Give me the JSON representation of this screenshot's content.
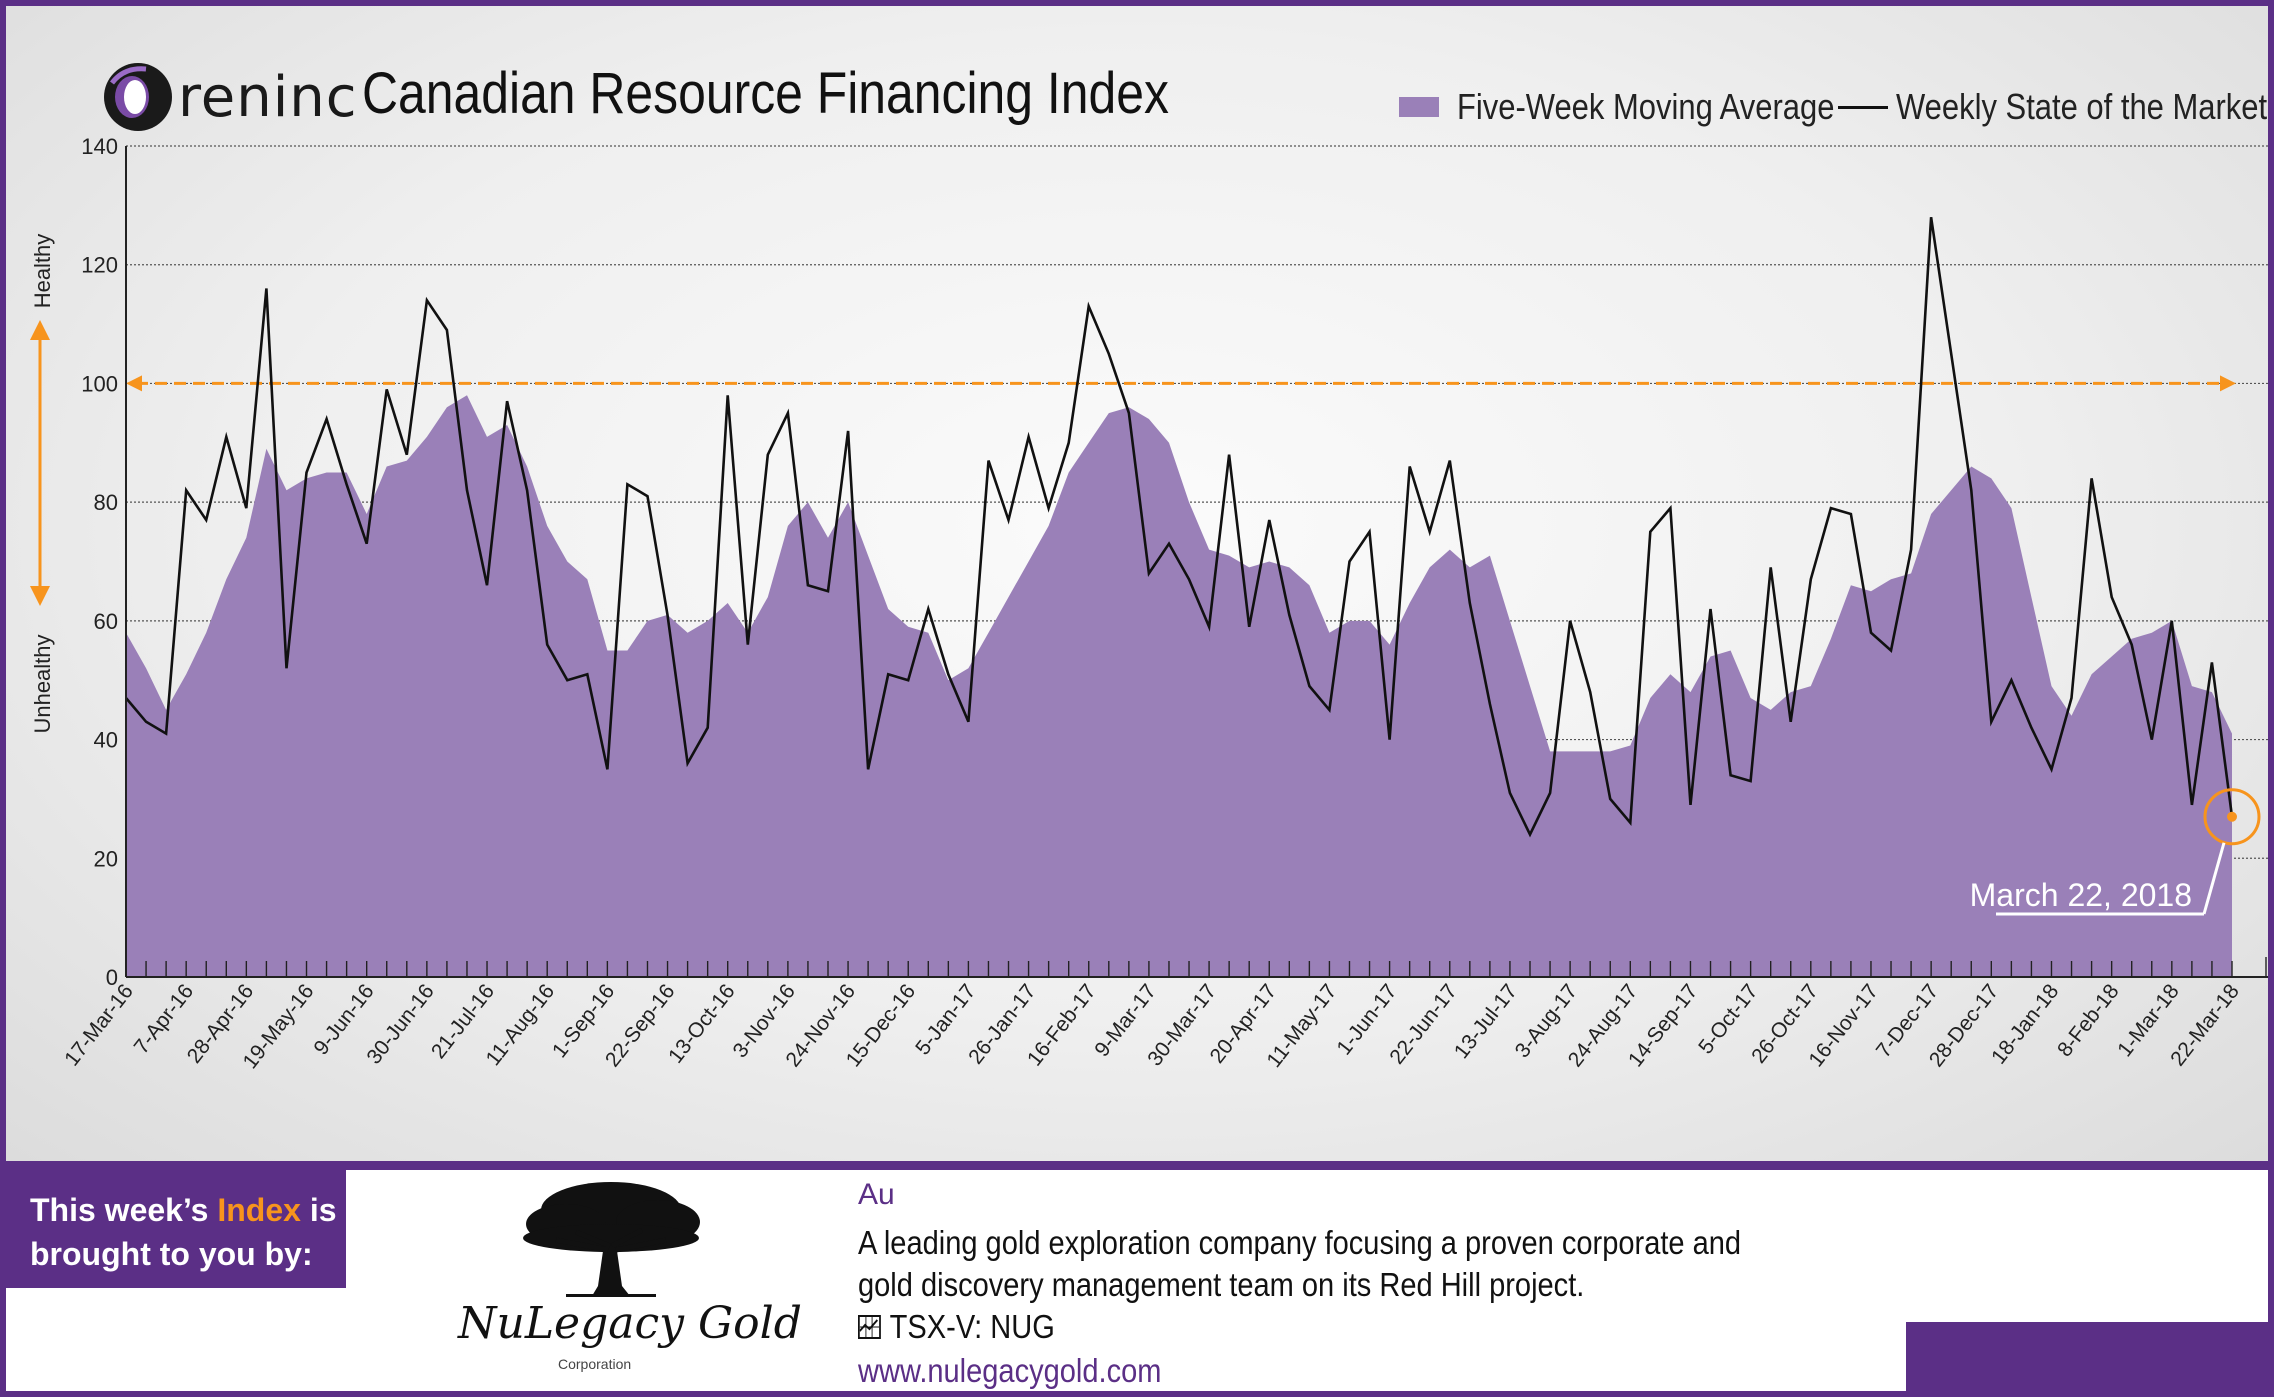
{
  "header": {
    "logo_text": "reninc",
    "title": "Canadian Resource Financing Index"
  },
  "legend": {
    "moving_average_label": "Five-Week Moving Average",
    "weekly_label": "Weekly State of the Market"
  },
  "colors": {
    "area": "#9a80b8",
    "line": "#111111",
    "threshold": "#f7941d",
    "brand": "#5b2f86"
  },
  "chart_data": {
    "type": "area",
    "ylim": [
      0,
      140
    ],
    "yticks": [
      0,
      20,
      40,
      60,
      80,
      100,
      120,
      140
    ],
    "threshold": 100,
    "side_labels": {
      "top": "Healthy",
      "bottom": "Unhealthy"
    },
    "x_tick_labels": [
      "17-Mar-16",
      "7-Apr-16",
      "28-Apr-16",
      "19-May-16",
      "9-Jun-16",
      "30-Jun-16",
      "21-Jul-16",
      "11-Aug-16",
      "1-Sep-16",
      "22-Sep-16",
      "13-Oct-16",
      "3-Nov-16",
      "24-Nov-16",
      "15-Dec-16",
      "5-Jan-17",
      "26-Jan-17",
      "16-Feb-17",
      "9-Mar-17",
      "30-Mar-17",
      "20-Apr-17",
      "11-May-17",
      "1-Jun-17",
      "22-Jun-17",
      "13-Jul-17",
      "3-Aug-17",
      "24-Aug-17",
      "14-Sep-17",
      "5-Oct-17",
      "26-Oct-17",
      "16-Nov-17",
      "7-Dec-17",
      "28-Dec-17",
      "18-Jan-18",
      "8-Feb-18",
      "1-Mar-18",
      "22-Mar-18"
    ],
    "series": [
      {
        "name": "Five-Week Moving Average",
        "values": [
          58,
          52,
          45,
          51,
          58,
          67,
          74,
          89,
          82,
          84,
          85,
          85,
          78,
          86,
          87,
          91,
          96,
          98,
          91,
          93,
          86,
          76,
          70,
          67,
          55,
          55,
          60,
          61,
          58,
          60,
          63,
          58,
          64,
          76,
          80,
          74,
          80,
          71,
          62,
          59,
          58,
          50,
          52,
          58,
          64,
          70,
          76,
          85,
          90,
          95,
          96,
          94,
          90,
          80,
          72,
          71,
          69,
          70,
          69,
          66,
          58,
          60,
          60,
          56,
          63,
          69,
          72,
          69,
          71,
          60,
          49,
          38,
          38,
          38,
          38,
          39,
          47,
          51,
          48,
          54,
          55,
          47,
          45,
          48,
          49,
          57,
          66,
          65,
          67,
          68,
          78,
          82,
          86,
          84,
          79,
          64,
          49,
          44,
          51,
          54,
          57,
          58,
          60,
          49,
          48,
          41
        ],
        "values_note": ""
      },
      {
        "name": "Weekly State of the Market",
        "values": [
          47,
          43,
          41,
          82,
          77,
          91,
          79,
          116,
          52,
          85,
          94,
          83,
          73,
          99,
          88,
          114,
          109,
          82,
          66,
          97,
          82,
          56,
          50,
          51,
          35,
          83,
          81,
          61,
          36,
          42,
          98,
          56,
          88,
          95,
          66,
          65,
          92,
          35,
          51,
          50,
          62,
          51,
          43,
          87,
          77,
          91,
          79,
          90,
          113,
          105,
          95,
          68,
          73,
          67,
          59,
          88,
          59,
          77,
          61,
          49,
          45,
          70,
          75,
          40,
          86,
          75,
          87,
          63,
          46,
          31,
          24,
          31,
          60,
          48,
          30,
          26,
          75,
          79,
          29,
          62,
          34,
          33,
          69,
          43,
          67,
          79,
          78,
          58,
          55,
          72,
          128,
          105,
          82,
          43,
          50,
          42,
          35,
          47,
          84,
          64,
          56,
          40,
          60,
          29,
          53,
          27
        ]
      }
    ],
    "annotation": {
      "label": "March 22, 2018",
      "value": 27
    }
  },
  "sponsor": {
    "tag_prefix": "This week’s ",
    "tag_highlight": "Index",
    "tag_suffix": " is",
    "tag_line2": "brought to you by:",
    "company_name": "NuLegacy Gold",
    "company_sub": "Corporation",
    "symbol": "Au",
    "description_line1": "A leading gold exploration company focusing a proven corporate and",
    "description_line2": "gold discovery management team on its Red Hill project.",
    "ticker": "TSX-V:  NUG",
    "url": "www.nulegacygold.com"
  }
}
